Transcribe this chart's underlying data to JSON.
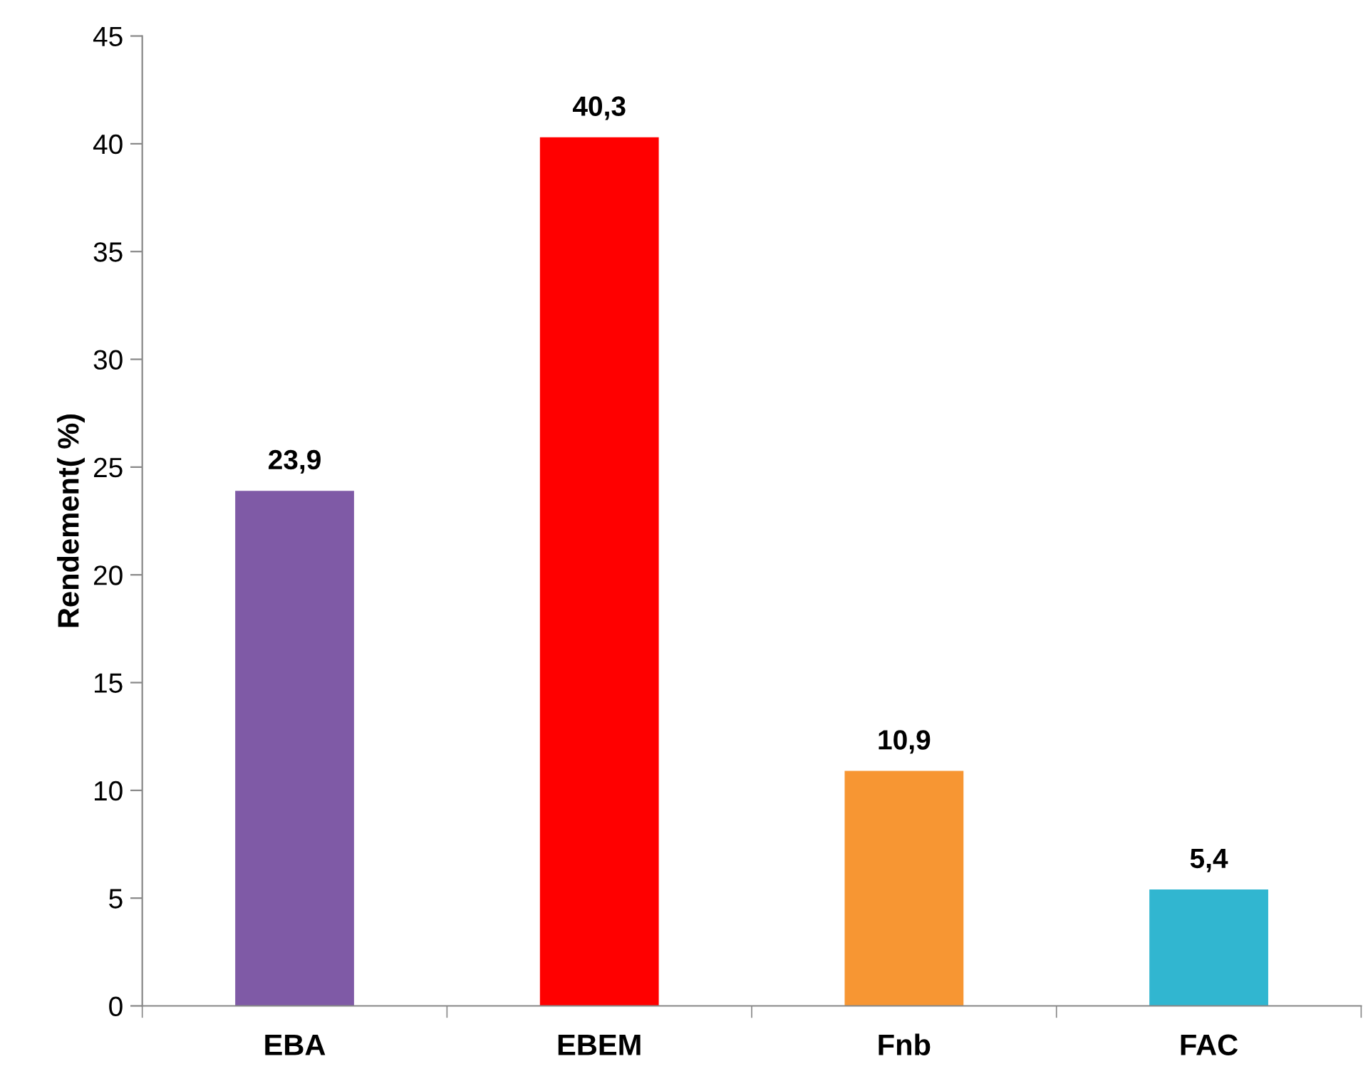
{
  "chart_data": {
    "type": "bar",
    "ylabel": "Rendement( %)",
    "categories": [
      "EBA",
      "EBEM",
      "Fnb",
      "FAC"
    ],
    "values": [
      23.9,
      40.3,
      10.9,
      5.4
    ],
    "colors": [
      "#7f5aa6",
      "#ff0000",
      "#f79633",
      "#31b6d0"
    ],
    "value_labels": [
      "23,9",
      "40,3",
      "10,9",
      "5,4"
    ],
    "ylim": [
      0,
      45
    ],
    "yticks": [
      0,
      5,
      10,
      15,
      20,
      25,
      30,
      35,
      40,
      45
    ],
    "grid": false
  }
}
